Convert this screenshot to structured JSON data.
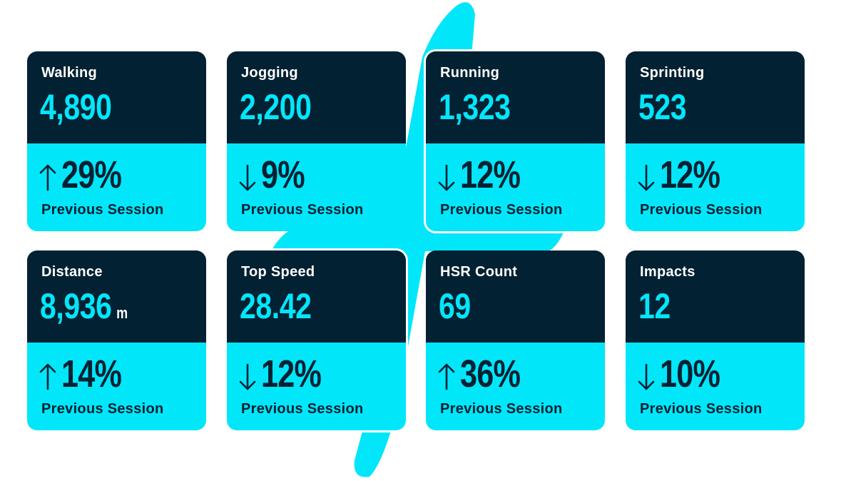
{
  "colors": {
    "dark": "#022132",
    "accent": "#02e6fa",
    "label": "#ffffff"
  },
  "cards": [
    {
      "label": "Walking",
      "value": "4,890",
      "unit": "",
      "trend": "up",
      "change": "29%",
      "caption": "Previous Session"
    },
    {
      "label": "Jogging",
      "value": "2,200",
      "unit": "",
      "trend": "down",
      "change": "9%",
      "caption": "Previous Session"
    },
    {
      "label": "Running",
      "value": "1,323",
      "unit": "",
      "trend": "down",
      "change": "12%",
      "caption": "Previous Session"
    },
    {
      "label": "Sprinting",
      "value": "523",
      "unit": "",
      "trend": "down",
      "change": "12%",
      "caption": "Previous Session"
    },
    {
      "label": "Distance",
      "value": "8,936",
      "unit": "m",
      "trend": "up",
      "change": "14%",
      "caption": "Previous Session"
    },
    {
      "label": "Top Speed",
      "value": "28.42",
      "unit": "",
      "trend": "down",
      "change": "12%",
      "caption": "Previous Session"
    },
    {
      "label": "HSR Count",
      "value": "69",
      "unit": "",
      "trend": "up",
      "change": "36%",
      "caption": "Previous Session"
    },
    {
      "label": "Impacts",
      "value": "12",
      "unit": "",
      "trend": "down",
      "change": "10%",
      "caption": "Previous Session"
    }
  ]
}
